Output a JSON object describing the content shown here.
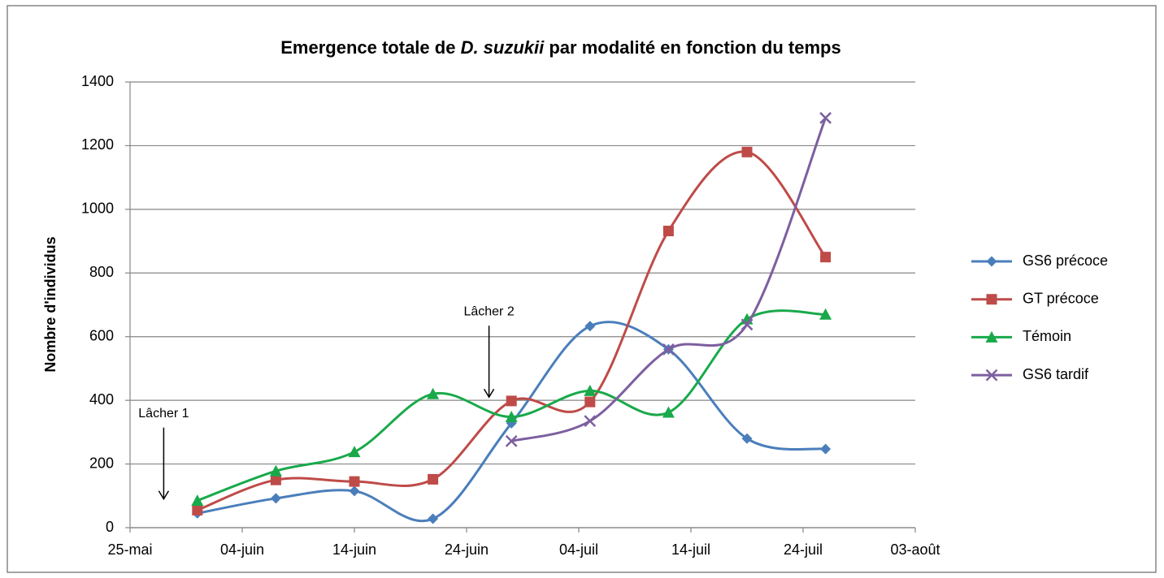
{
  "chart_data": {
    "type": "line",
    "title": [
      "Emergence totale de ",
      "D. suzukii",
      " par modalité en fonction du temps"
    ],
    "y_label": "Nombre d'individus",
    "x": [
      "31-mai",
      "07-juin",
      "14-juin",
      "21-juin",
      "28-juin",
      "05-juil",
      "12-juil",
      "19-juil",
      "26-juil"
    ],
    "series": [
      {
        "name": "GS6 précoce",
        "color": "#4a7ebb",
        "marker": "diamond",
        "values": [
          45,
          92,
          115,
          28,
          328,
          633,
          560,
          280,
          247
        ]
      },
      {
        "name": "GT précoce",
        "color": "#be4b48",
        "marker": "square",
        "values": [
          55,
          150,
          145,
          152,
          398,
          395,
          932,
          1180,
          850
        ]
      },
      {
        "name": "Témoin",
        "color": "#19a94a",
        "marker": "triangle",
        "values": [
          85,
          178,
          238,
          420,
          348,
          430,
          362,
          655,
          670
        ]
      },
      {
        "name": "GS6 tardif",
        "color": "#7d5fa0",
        "marker": "x",
        "values": [
          null,
          null,
          null,
          null,
          272,
          335,
          560,
          638,
          1287
        ]
      }
    ],
    "xlim": [
      "25-mai",
      "03-août"
    ],
    "xticks": [
      "25-mai",
      "04-juin",
      "14-juin",
      "24-juin",
      "04-juil",
      "14-juil",
      "24-juil",
      "03-août"
    ],
    "ylim": [
      0,
      1400
    ],
    "yticks": [
      0,
      200,
      400,
      600,
      800,
      1000,
      1200,
      1400
    ],
    "grid": true,
    "smooth": true,
    "legend": "right",
    "annotations": [
      {
        "text": "Lâcher 1",
        "x": "28-mai",
        "y": 90
      },
      {
        "text": "Lâcher 2",
        "x": "26-juin",
        "y": 410
      }
    ]
  }
}
